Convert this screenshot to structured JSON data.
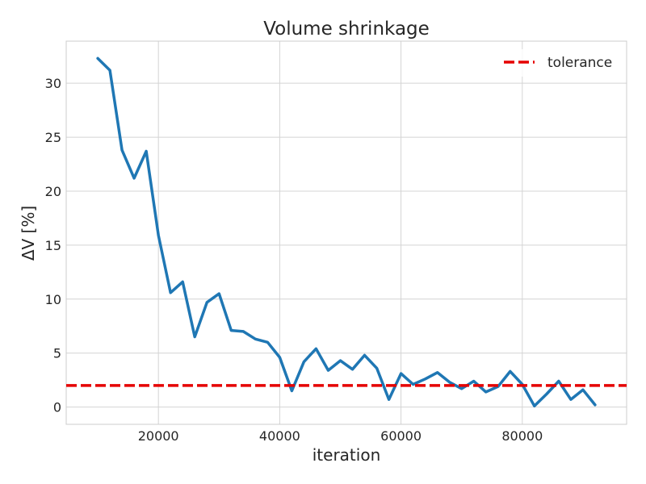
{
  "chart_data": {
    "type": "line",
    "title": "Volume shrinkage",
    "xlabel": "iteration",
    "ylabel": "ΔV [%]",
    "xlim": [
      4800,
      97200
    ],
    "ylim": [
      -1.6,
      33.9
    ],
    "xticks": [
      20000,
      40000,
      60000,
      80000
    ],
    "yticks": [
      0,
      5,
      10,
      15,
      20,
      25,
      30
    ],
    "grid": true,
    "legend_position": "top-right",
    "series": [
      {
        "name": "",
        "color": "#1f77b4",
        "style": "solid",
        "x": [
          10000,
          12000,
          14000,
          16000,
          18000,
          20000,
          22000,
          24000,
          26000,
          28000,
          30000,
          32000,
          34000,
          36000,
          38000,
          40000,
          42000,
          44000,
          46000,
          48000,
          50000,
          52000,
          54000,
          56000,
          58000,
          60000,
          62000,
          64000,
          66000,
          68000,
          70000,
          72000,
          74000,
          76000,
          78000,
          80000,
          82000,
          84000,
          86000,
          88000,
          90000,
          92000
        ],
        "y": [
          32.3,
          31.2,
          23.8,
          21.2,
          23.7,
          15.9,
          10.6,
          11.6,
          6.5,
          9.7,
          10.5,
          7.1,
          7.0,
          6.3,
          6.0,
          4.6,
          1.5,
          4.2,
          5.4,
          3.4,
          4.3,
          3.5,
          4.8,
          3.6,
          0.7,
          3.1,
          2.1,
          2.6,
          3.2,
          2.3,
          1.7,
          2.4,
          1.4,
          1.9,
          3.3,
          2.1,
          0.1,
          1.2,
          2.4,
          0.7,
          1.6,
          0.2
        ]
      },
      {
        "name": "tolerance",
        "color": "#e50000",
        "style": "dashed",
        "hline": 2
      }
    ]
  }
}
